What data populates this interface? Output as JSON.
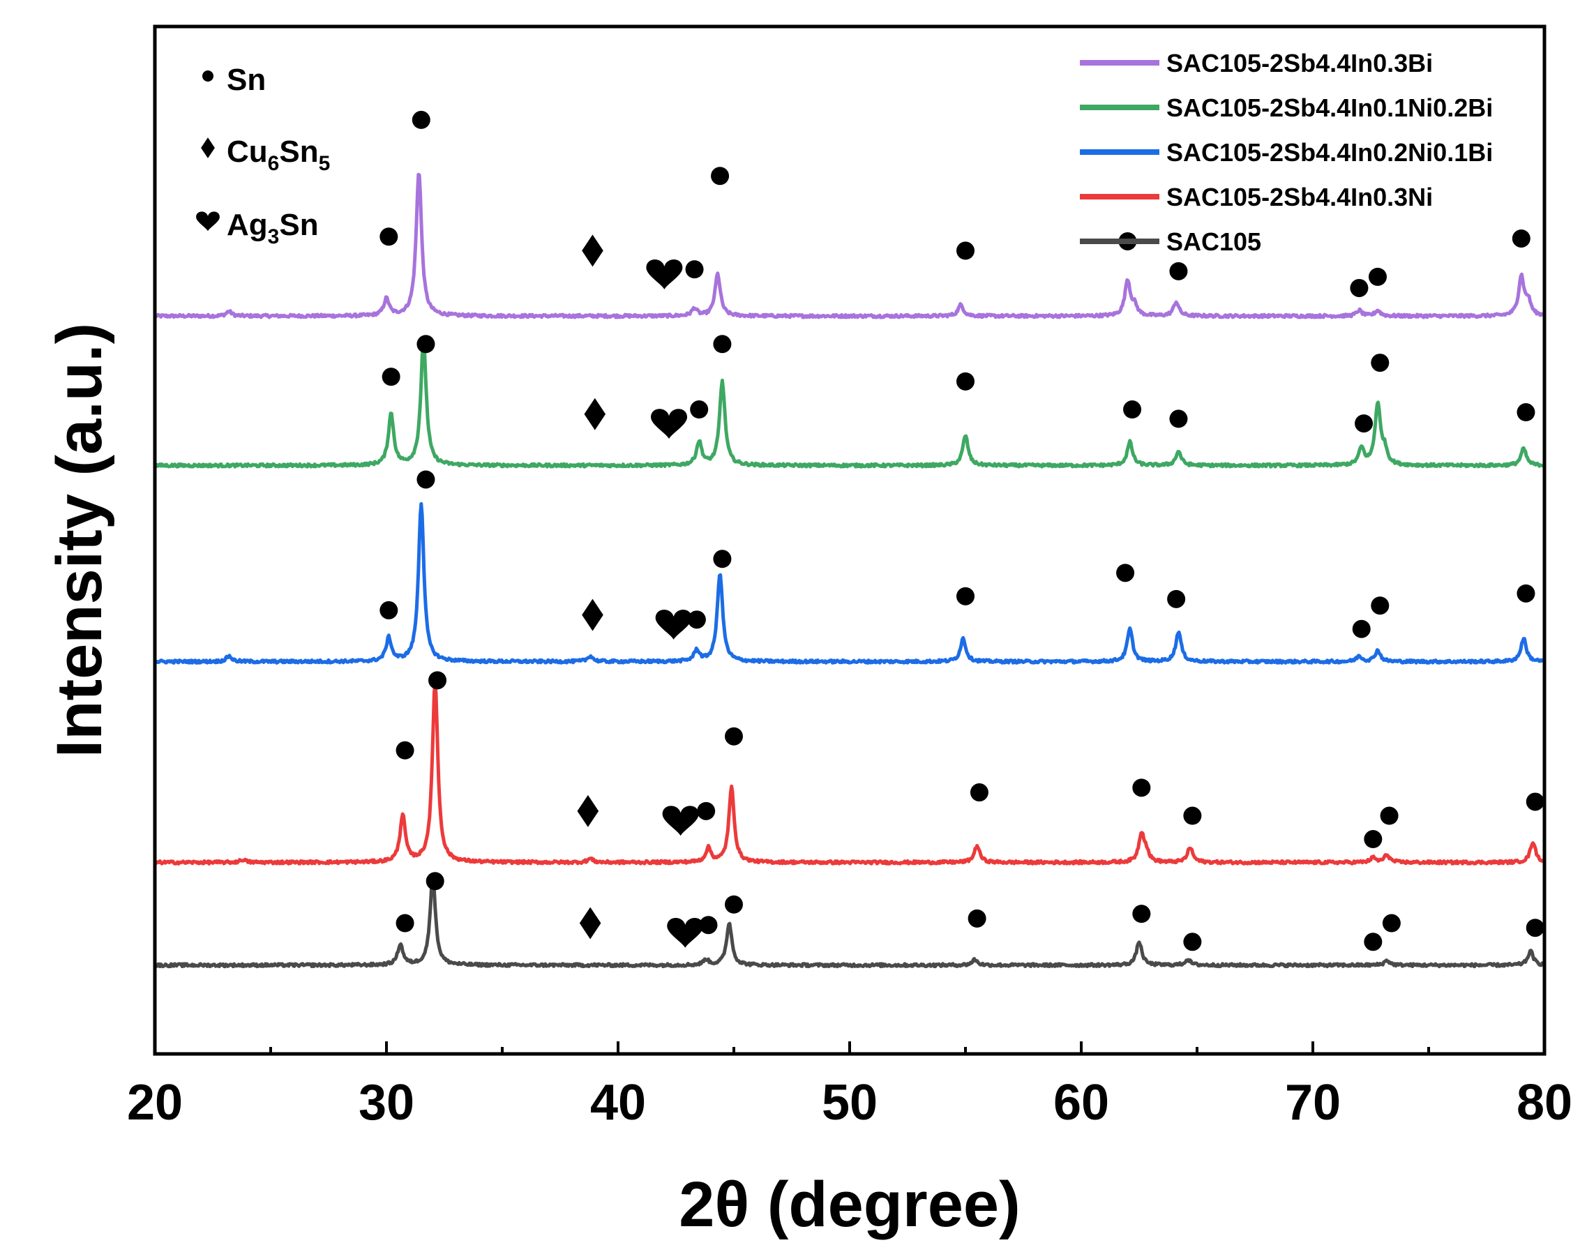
{
  "chart_data": {
    "type": "line",
    "title": "",
    "xlabel": "2θ (degree)",
    "ylabel": "Intensity (a.u.)",
    "xlim": [
      20,
      80
    ],
    "ylim": [
      0,
      11
    ],
    "x_ticks": [
      20,
      30,
      40,
      50,
      60,
      70,
      80
    ],
    "legend_position": "top-right",
    "phase_legend": [
      {
        "symbol": "circle",
        "name": "Sn",
        "base": "Sn",
        "subs": []
      },
      {
        "symbol": "diamond",
        "name": "Cu6Sn5",
        "base": "Cu",
        "subs": [
          {
            "sub": "6",
            "after": "Sn"
          },
          {
            "sub": "5",
            "after": ""
          }
        ]
      },
      {
        "symbol": "heart",
        "name": "Ag3Sn",
        "base": "Ag",
        "subs": [
          {
            "sub": "3",
            "after": "Sn"
          }
        ]
      }
    ],
    "series": [
      {
        "name": "SAC105-2Sb4.4In0.3Bi",
        "color": "#A773DC",
        "baseline": 7.9,
        "peaks": [
          [
            23.2,
            0.05
          ],
          [
            30.0,
            0.18
          ],
          [
            31.4,
            1.55
          ],
          [
            43.3,
            0.08
          ],
          [
            44.3,
            0.45
          ],
          [
            54.8,
            0.12
          ],
          [
            62.0,
            0.38
          ],
          [
            62.3,
            0.1
          ],
          [
            64.1,
            0.15
          ],
          [
            72.0,
            0.06
          ],
          [
            72.8,
            0.06
          ],
          [
            79.0,
            0.42
          ],
          [
            79.3,
            0.15
          ]
        ],
        "markers": [
          {
            "symbol": "circle",
            "x": 30.1,
            "y": 8.75
          },
          {
            "symbol": "circle",
            "x": 31.5,
            "y": 10.0
          },
          {
            "symbol": "diamond",
            "x": 38.9,
            "y": 8.6
          },
          {
            "symbol": "heart",
            "x": 42.0,
            "y": 8.35
          },
          {
            "symbol": "circle",
            "x": 43.3,
            "y": 8.4
          },
          {
            "symbol": "circle",
            "x": 44.4,
            "y": 9.4
          },
          {
            "symbol": "circle",
            "x": 55.0,
            "y": 8.6
          },
          {
            "symbol": "circle",
            "x": 62.0,
            "y": 8.7
          },
          {
            "symbol": "circle",
            "x": 64.2,
            "y": 8.38
          },
          {
            "symbol": "circle",
            "x": 72.0,
            "y": 8.2
          },
          {
            "symbol": "circle",
            "x": 72.8,
            "y": 8.32
          },
          {
            "symbol": "circle",
            "x": 79.0,
            "y": 8.73
          }
        ]
      },
      {
        "name": "SAC105-2Sb4.4In0.1Ni0.2Bi",
        "color": "#3EA863",
        "baseline": 6.3,
        "peaks": [
          [
            30.2,
            0.55
          ],
          [
            31.6,
            1.35
          ],
          [
            43.5,
            0.25
          ],
          [
            44.5,
            0.9
          ],
          [
            55.0,
            0.32
          ],
          [
            62.1,
            0.25
          ],
          [
            64.2,
            0.15
          ],
          [
            72.1,
            0.18
          ],
          [
            72.8,
            0.65
          ],
          [
            73.1,
            0.15
          ],
          [
            79.1,
            0.18
          ]
        ],
        "markers": [
          {
            "symbol": "circle",
            "x": 30.2,
            "y": 7.25
          },
          {
            "symbol": "circle",
            "x": 31.7,
            "y": 7.6
          },
          {
            "symbol": "diamond",
            "x": 39.0,
            "y": 6.85
          },
          {
            "symbol": "heart",
            "x": 42.2,
            "y": 6.75
          },
          {
            "symbol": "circle",
            "x": 43.5,
            "y": 6.9
          },
          {
            "symbol": "circle",
            "x": 44.5,
            "y": 7.6
          },
          {
            "symbol": "circle",
            "x": 55.0,
            "y": 7.2
          },
          {
            "symbol": "circle",
            "x": 62.2,
            "y": 6.9
          },
          {
            "symbol": "circle",
            "x": 64.2,
            "y": 6.8
          },
          {
            "symbol": "circle",
            "x": 72.2,
            "y": 6.75
          },
          {
            "symbol": "circle",
            "x": 72.9,
            "y": 7.4
          },
          {
            "symbol": "circle",
            "x": 79.2,
            "y": 6.87
          }
        ]
      },
      {
        "name": "SAC105-2Sb4.4In0.2Ni0.1Bi",
        "color": "#1C6CE6",
        "baseline": 4.2,
        "peaks": [
          [
            23.2,
            0.06
          ],
          [
            30.1,
            0.25
          ],
          [
            31.5,
            1.7
          ],
          [
            38.8,
            0.06
          ],
          [
            43.4,
            0.12
          ],
          [
            44.4,
            0.95
          ],
          [
            54.9,
            0.25
          ],
          [
            62.1,
            0.35
          ],
          [
            64.2,
            0.32
          ],
          [
            72.0,
            0.06
          ],
          [
            72.8,
            0.12
          ],
          [
            79.1,
            0.25
          ]
        ],
        "markers": [
          {
            "symbol": "circle",
            "x": 30.1,
            "y": 4.75
          },
          {
            "symbol": "circle",
            "x": 31.7,
            "y": 6.15
          },
          {
            "symbol": "diamond",
            "x": 38.9,
            "y": 4.7
          },
          {
            "symbol": "heart",
            "x": 42.4,
            "y": 4.6
          },
          {
            "symbol": "circle",
            "x": 43.4,
            "y": 4.65
          },
          {
            "symbol": "circle",
            "x": 44.5,
            "y": 5.3
          },
          {
            "symbol": "circle",
            "x": 55.0,
            "y": 4.9
          },
          {
            "symbol": "circle",
            "x": 61.9,
            "y": 5.15
          },
          {
            "symbol": "circle",
            "x": 64.1,
            "y": 4.87
          },
          {
            "symbol": "circle",
            "x": 72.1,
            "y": 4.55
          },
          {
            "symbol": "circle",
            "x": 72.9,
            "y": 4.8
          },
          {
            "symbol": "circle",
            "x": 79.2,
            "y": 4.93
          }
        ]
      },
      {
        "name": "SAC105-2Sb4.4In0.3Ni",
        "color": "#EC3A3B",
        "baseline": 2.05,
        "peaks": [
          [
            23.8,
            0.03
          ],
          [
            30.7,
            0.5
          ],
          [
            32.1,
            1.95
          ],
          [
            38.8,
            0.04
          ],
          [
            43.9,
            0.15
          ],
          [
            44.9,
            0.8
          ],
          [
            55.5,
            0.18
          ],
          [
            62.6,
            0.3
          ],
          [
            62.8,
            0.1
          ],
          [
            64.7,
            0.16
          ],
          [
            72.6,
            0.05
          ],
          [
            73.2,
            0.08
          ],
          [
            79.5,
            0.22
          ]
        ],
        "markers": [
          {
            "symbol": "circle",
            "x": 30.8,
            "y": 3.25
          },
          {
            "symbol": "circle",
            "x": 32.2,
            "y": 4.0
          },
          {
            "symbol": "diamond",
            "x": 38.7,
            "y": 2.6
          },
          {
            "symbol": "heart",
            "x": 42.7,
            "y": 2.5
          },
          {
            "symbol": "circle",
            "x": 43.8,
            "y": 2.6
          },
          {
            "symbol": "circle",
            "x": 45.0,
            "y": 3.4
          },
          {
            "symbol": "circle",
            "x": 55.6,
            "y": 2.8
          },
          {
            "symbol": "circle",
            "x": 62.6,
            "y": 2.85
          },
          {
            "symbol": "circle",
            "x": 64.8,
            "y": 2.55
          },
          {
            "symbol": "circle",
            "x": 72.6,
            "y": 2.3
          },
          {
            "symbol": "circle",
            "x": 73.3,
            "y": 2.55
          },
          {
            "symbol": "circle",
            "x": 79.6,
            "y": 2.7
          }
        ]
      },
      {
        "name": "SAC105",
        "color": "#4A4A4A",
        "baseline": 0.95,
        "peaks": [
          [
            30.6,
            0.22
          ],
          [
            32.0,
            0.95
          ],
          [
            43.8,
            0.06
          ],
          [
            44.8,
            0.45
          ],
          [
            55.4,
            0.06
          ],
          [
            62.5,
            0.25
          ],
          [
            64.6,
            0.06
          ],
          [
            73.2,
            0.05
          ],
          [
            79.4,
            0.15
          ]
        ],
        "markers": [
          {
            "symbol": "circle",
            "x": 30.8,
            "y": 1.4
          },
          {
            "symbol": "circle",
            "x": 32.1,
            "y": 1.85
          },
          {
            "symbol": "diamond",
            "x": 38.8,
            "y": 1.4
          },
          {
            "symbol": "heart",
            "x": 42.9,
            "y": 1.3
          },
          {
            "symbol": "circle",
            "x": 43.9,
            "y": 1.38
          },
          {
            "symbol": "circle",
            "x": 45.0,
            "y": 1.6
          },
          {
            "symbol": "circle",
            "x": 55.5,
            "y": 1.45
          },
          {
            "symbol": "circle",
            "x": 62.6,
            "y": 1.5
          },
          {
            "symbol": "circle",
            "x": 64.8,
            "y": 1.2
          },
          {
            "symbol": "circle",
            "x": 72.6,
            "y": 1.2
          },
          {
            "symbol": "circle",
            "x": 73.4,
            "y": 1.4
          },
          {
            "symbol": "circle",
            "x": 79.6,
            "y": 1.35
          }
        ]
      }
    ]
  }
}
